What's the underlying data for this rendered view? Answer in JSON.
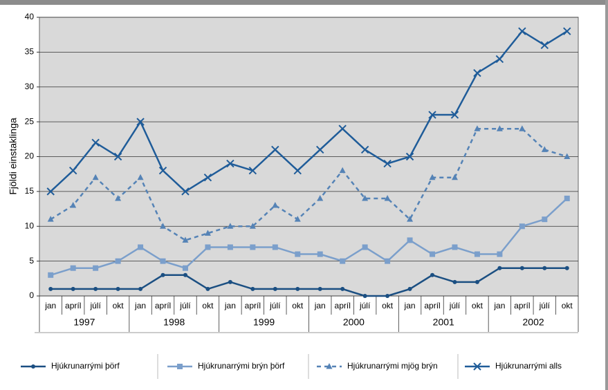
{
  "chart_data": {
    "type": "line",
    "y_label": "Fjöldi einstaklinga",
    "categories": [
      "jan",
      "apríl",
      "júlí",
      "okt",
      "jan",
      "apríl",
      "júlí",
      "okt",
      "jan",
      "apríl",
      "júlí",
      "okt",
      "jan",
      "apríl",
      "júlí",
      "okt",
      "jan",
      "apríl",
      "júlí",
      "okt",
      "jan",
      "apríl",
      "júlí",
      "okt"
    ],
    "groups": [
      "1997",
      "1998",
      "1999",
      "2000",
      "2001",
      "2002"
    ],
    "ylim": [
      0,
      40
    ],
    "yticks": [
      0,
      5,
      10,
      15,
      20,
      25,
      30,
      35,
      40
    ],
    "grid": true,
    "legend": "bottom",
    "series": [
      {
        "name": "Hjúkrunarrými þörf",
        "color": "#1b4f82",
        "marker": "circle",
        "dashed": false,
        "values": [
          1,
          1,
          1,
          1,
          1,
          3,
          3,
          1,
          2,
          1,
          1,
          1,
          1,
          1,
          0,
          0,
          1,
          3,
          2,
          2,
          4,
          4,
          4,
          4
        ]
      },
      {
        "name": "Hjúkrunarrými brýn þörf",
        "color": "#7b9fcb",
        "marker": "square",
        "dashed": false,
        "values": [
          3,
          4,
          4,
          5,
          7,
          5,
          4,
          7,
          7,
          7,
          7,
          6,
          6,
          5,
          7,
          5,
          8,
          6,
          7,
          6,
          6,
          10,
          11,
          14
        ]
      },
      {
        "name": "Hjúkrunarrými mjög brýn",
        "color": "#5583b6",
        "marker": "triangle",
        "dashed": true,
        "values": [
          11,
          13,
          17,
          14,
          17,
          10,
          8,
          9,
          10,
          10,
          13,
          11,
          14,
          18,
          14,
          14,
          11,
          17,
          17,
          24,
          24,
          24,
          21,
          20
        ]
      },
      {
        "name": "Hjúkrunarrými alls",
        "color": "#1f5c99",
        "marker": "x",
        "dashed": false,
        "values": [
          15,
          18,
          22,
          20,
          25,
          18,
          15,
          17,
          19,
          18,
          21,
          18,
          21,
          24,
          21,
          19,
          20,
          26,
          26,
          32,
          34,
          38,
          36,
          38
        ]
      }
    ]
  }
}
